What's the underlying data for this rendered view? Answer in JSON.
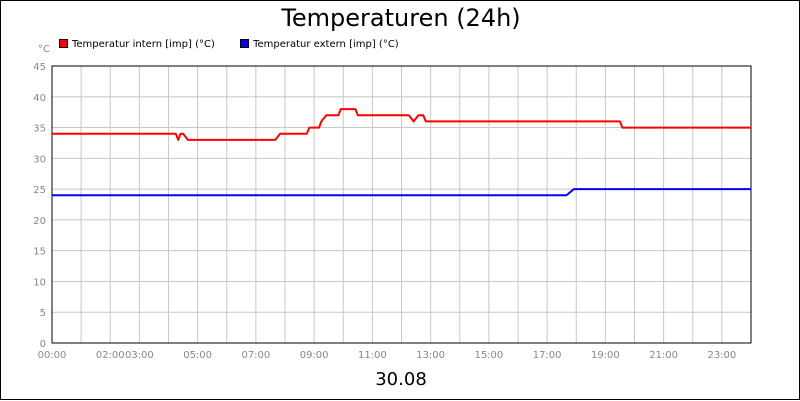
{
  "chart_data": {
    "type": "line",
    "title": "Temperaturen (24h)",
    "y_unit": "°C",
    "xlabel": "",
    "ylabel": "",
    "date": "30.08",
    "ylim": [
      0,
      45
    ],
    "yticks": [
      0,
      5,
      10,
      15,
      20,
      25,
      30,
      35,
      40,
      45
    ],
    "xlim": [
      "00:00",
      "24:00"
    ],
    "xticks": [
      "00:00",
      "02:00",
      "03:00",
      "05:00",
      "07:00",
      "09:00",
      "11:00",
      "13:00",
      "15:00",
      "17:00",
      "19:00",
      "21:00",
      "23:00"
    ],
    "grid": true,
    "legend_position": "top-left",
    "series": [
      {
        "name": "Temperatur intern [imp] (°C)",
        "color": "#ff0000",
        "points": [
          [
            "00:00",
            34
          ],
          [
            "04:15",
            34
          ],
          [
            "04:20",
            33
          ],
          [
            "04:25",
            34
          ],
          [
            "04:30",
            34
          ],
          [
            "04:40",
            33
          ],
          [
            "07:40",
            33
          ],
          [
            "07:50",
            34
          ],
          [
            "08:45",
            34
          ],
          [
            "08:50",
            35
          ],
          [
            "09:10",
            35
          ],
          [
            "09:15",
            36
          ],
          [
            "09:25",
            37
          ],
          [
            "09:50",
            37
          ],
          [
            "09:55",
            38
          ],
          [
            "10:25",
            38
          ],
          [
            "10:30",
            37
          ],
          [
            "12:15",
            37
          ],
          [
            "12:25",
            36
          ],
          [
            "12:35",
            37
          ],
          [
            "12:45",
            37
          ],
          [
            "12:50",
            36
          ],
          [
            "19:30",
            36
          ],
          [
            "19:35",
            35
          ],
          [
            "24:00",
            35
          ]
        ]
      },
      {
        "name": "Temperatur extern [imp] (°C)",
        "color": "#0000ff",
        "points": [
          [
            "00:00",
            24
          ],
          [
            "17:40",
            24
          ],
          [
            "17:55",
            25
          ],
          [
            "24:00",
            25
          ]
        ]
      }
    ]
  }
}
